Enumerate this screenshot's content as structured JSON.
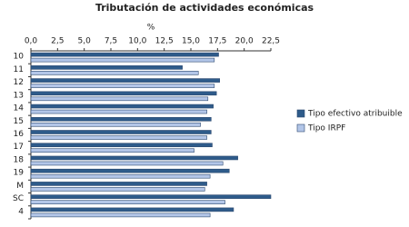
{
  "chart_data": {
    "type": "hbar",
    "title": "Tributación de actividades económicas",
    "x_label": "%",
    "categories": [
      "10",
      "11",
      "12",
      "13",
      "14",
      "15",
      "16",
      "17",
      "18",
      "19",
      "M",
      "SC",
      "4"
    ],
    "series": [
      {
        "name": "Tipo efectivo atribuible",
        "color": "#2e5b8a",
        "values": [
          17.6,
          14.2,
          17.7,
          17.4,
          17.1,
          16.9,
          16.9,
          17.0,
          19.4,
          18.6,
          16.5,
          22.5,
          19.0
        ]
      },
      {
        "name": "Tipo IRPF",
        "color": "#b3c6e8",
        "values": [
          17.2,
          15.7,
          17.2,
          16.6,
          16.5,
          15.9,
          16.5,
          15.3,
          18.0,
          16.8,
          16.3,
          18.2,
          16.8
        ]
      }
    ],
    "xlim": [
      0,
      22.5
    ],
    "xticks": [
      {
        "value": 0,
        "label": "0,0"
      },
      {
        "value": 2.5,
        "label": "2,5"
      },
      {
        "value": 5,
        "label": "5,0"
      },
      {
        "value": 7.5,
        "label": "7,5"
      },
      {
        "value": 10,
        "label": "10,0"
      },
      {
        "value": 12.5,
        "label": "12,5"
      },
      {
        "value": 15,
        "label": "15,0"
      },
      {
        "value": 17.5,
        "label": "17,5"
      },
      {
        "value": 20,
        "label": "20,0"
      },
      {
        "value": 22.5,
        "label": "22,5"
      }
    ],
    "legend": "right"
  }
}
